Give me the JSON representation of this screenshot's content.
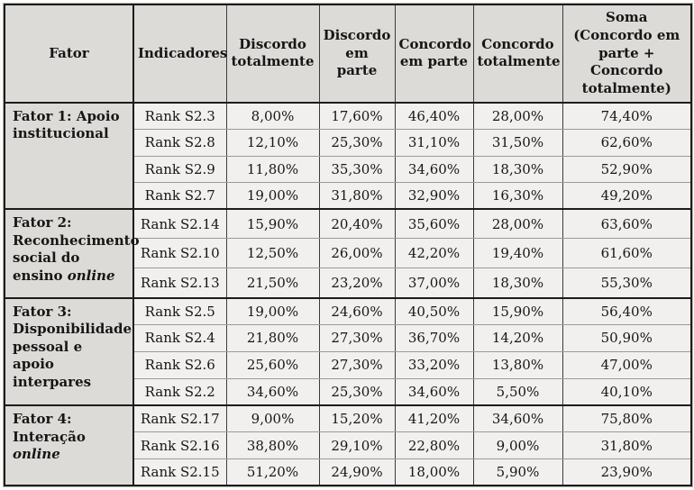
{
  "table": {
    "columns": [
      "Fator",
      "Indicadores",
      "Discordo totalmente",
      "Discordo em parte",
      "Concordo em parte",
      "Concordo totalmente",
      "Soma (Concordo em parte + Concordo totalmente)"
    ],
    "colors": {
      "header_bg": "#dcdbd8",
      "cell_bg": "#f1f0ee",
      "strong_border": "#1c1c1c",
      "light_border": "#9a9a97",
      "text": "#161616"
    },
    "groups": [
      {
        "factor": "Fator 1: Apoio institucional",
        "factor_italic": "",
        "rows": [
          [
            "Rank S2.3",
            "8,00%",
            "17,60%",
            "46,40%",
            "28,00%",
            "74,40%"
          ],
          [
            "Rank S2.8",
            "12,10%",
            "25,30%",
            "31,10%",
            "31,50%",
            "62,60%"
          ],
          [
            "Rank S2.9",
            "11,80%",
            "35,30%",
            "34,60%",
            "18,30%",
            "52,90%"
          ],
          [
            "Rank S2.7",
            "19,00%",
            "31,80%",
            "32,90%",
            "16,30%",
            "49,20%"
          ]
        ]
      },
      {
        "factor": "Fator 2: Reconhecimento social do ensino",
        "factor_italic": "online",
        "rows": [
          [
            "Rank S2.14",
            "15,90%",
            "20,40%",
            "35,60%",
            "28,00%",
            "63,60%"
          ],
          [
            "Rank S2.10",
            "12,50%",
            "26,00%",
            "42,20%",
            "19,40%",
            "61,60%"
          ],
          [
            "Rank S2.13",
            "21,50%",
            "23,20%",
            "37,00%",
            "18,30%",
            "55,30%"
          ]
        ]
      },
      {
        "factor": "Fator 3: Disponibilidade pessoal e apoio interpares",
        "factor_italic": "",
        "rows": [
          [
            "Rank S2.5",
            "19,00%",
            "24,60%",
            "40,50%",
            "15,90%",
            "56,40%"
          ],
          [
            "Rank S2.4",
            "21,80%",
            "27,30%",
            "36,70%",
            "14,20%",
            "50,90%"
          ],
          [
            "Rank S2.6",
            "25,60%",
            "27,30%",
            "33,20%",
            "13,80%",
            "47,00%"
          ],
          [
            "Rank S2.2",
            "34,60%",
            "25,30%",
            "34,60%",
            "5,50%",
            "40,10%"
          ]
        ]
      },
      {
        "factor": "Fator 4: Interação",
        "factor_italic": "online",
        "rows": [
          [
            "Rank S2.17",
            "9,00%",
            "15,20%",
            "41,20%",
            "34,60%",
            "75,80%"
          ],
          [
            "Rank S2.16",
            "38,80%",
            "29,10%",
            "22,80%",
            "9,00%",
            "31,80%"
          ],
          [
            "Rank S2.15",
            "51,20%",
            "24,90%",
            "18,00%",
            "5,90%",
            "23,90%"
          ]
        ]
      }
    ]
  }
}
